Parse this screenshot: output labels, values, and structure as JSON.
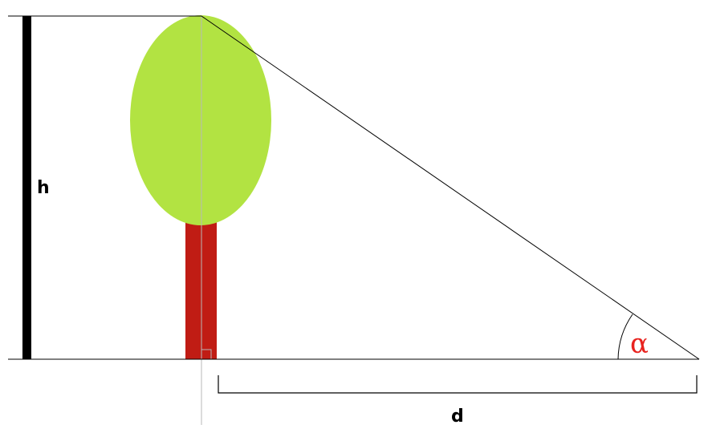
{
  "labels": {
    "height": "h",
    "distance": "d",
    "angle": "α"
  },
  "colors": {
    "foliage": "#b2e342",
    "trunk": "#c01c14",
    "height_bar": "#000000",
    "angle_label": "#e8231f",
    "center_line": "#b8b8b8",
    "lines": "#000000"
  }
}
